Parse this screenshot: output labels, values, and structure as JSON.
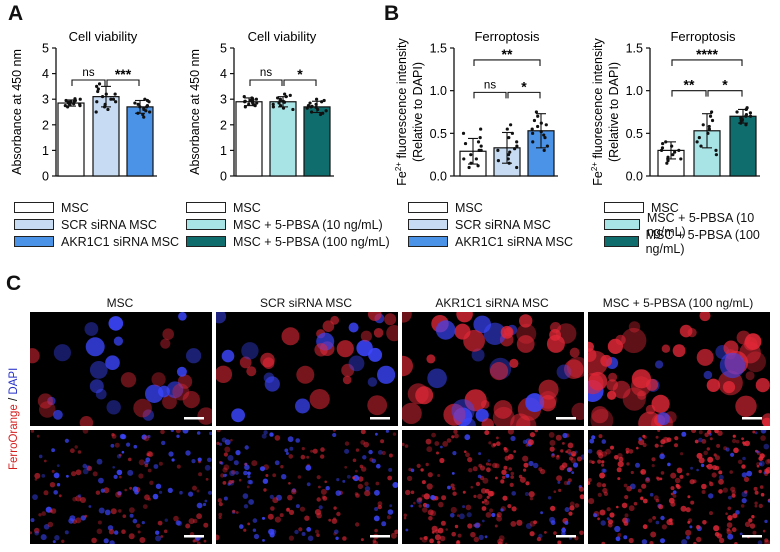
{
  "panels": {
    "A": "A",
    "B": "B",
    "C": "C"
  },
  "colors": {
    "msc": "#ffffff",
    "scr": "#c7dbf2",
    "akr": "#4a93e6",
    "pbsa10": "#a8e3e6",
    "pbsa100": "#106d6e",
    "scale_bar": "#ffffff"
  },
  "chart_data": [
    {
      "id": "A1",
      "type": "bar",
      "title": "Cell viability",
      "ylabel": "Absorbance at 450 nm",
      "ylim": [
        0,
        5
      ],
      "yticks": [
        0,
        1,
        2,
        3,
        4,
        5
      ],
      "categories": [
        "MSC",
        "SCR siRNA MSC",
        "AKR1C1 siRNA MSC"
      ],
      "values": [
        2.85,
        3.1,
        2.7
      ],
      "errors": [
        0.12,
        0.4,
        0.25
      ],
      "colors": [
        "#ffffff",
        "#c7dbf2",
        "#4a93e6"
      ],
      "points": [
        [
          2.7,
          2.75,
          2.8,
          2.85,
          2.9,
          2.95,
          3.0,
          2.8,
          2.85,
          2.9,
          2.75,
          2.95,
          2.88,
          2.82,
          3.02
        ],
        [
          2.5,
          2.7,
          2.8,
          2.9,
          3.0,
          3.1,
          3.2,
          3.3,
          3.5,
          3.6,
          3.0,
          2.9,
          3.4,
          3.2,
          2.6
        ],
        [
          2.3,
          2.4,
          2.5,
          2.6,
          2.7,
          2.8,
          2.9,
          3.0,
          2.65,
          2.75,
          2.55,
          2.85,
          2.95,
          2.45,
          2.7
        ]
      ],
      "significance": [
        {
          "from": 0,
          "to": 1,
          "label": "ns",
          "y": 3.75
        },
        {
          "from": 1,
          "to": 2,
          "label": "***",
          "y": 3.75
        }
      ],
      "legend": [
        "MSC",
        "SCR siRNA MSC",
        "AKR1C1 siRNA MSC"
      ]
    },
    {
      "id": "A2",
      "type": "bar",
      "title": "Cell viability",
      "ylabel": "Absorbance at 450 nm",
      "ylim": [
        0,
        5
      ],
      "yticks": [
        0,
        1,
        2,
        3,
        4,
        5
      ],
      "categories": [
        "MSC",
        "MSC + 5-PBSA (10 ng/mL)",
        "MSC + 5-PBSA (100 ng/mL)"
      ],
      "values": [
        2.9,
        2.9,
        2.7
      ],
      "errors": [
        0.15,
        0.2,
        0.22
      ],
      "colors": [
        "#ffffff",
        "#a8e3e6",
        "#106d6e"
      ],
      "points": [
        [
          2.7,
          2.75,
          2.8,
          2.85,
          2.9,
          2.95,
          3.0,
          3.05,
          2.82,
          2.88,
          2.92,
          3.1,
          2.78,
          2.98,
          2.86
        ],
        [
          2.6,
          2.7,
          2.8,
          2.9,
          3.0,
          3.1,
          3.15,
          2.85,
          2.95,
          2.75,
          3.05,
          2.65,
          2.92,
          2.88,
          3.2
        ],
        [
          2.4,
          2.5,
          2.6,
          2.7,
          2.8,
          2.9,
          2.95,
          2.55,
          2.65,
          2.75,
          2.85,
          2.45,
          2.72,
          2.68,
          3.0
        ]
      ],
      "significance": [
        {
          "from": 0,
          "to": 1,
          "label": "ns",
          "y": 3.75
        },
        {
          "from": 1,
          "to": 2,
          "label": "*",
          "y": 3.75
        }
      ],
      "legend": [
        "MSC",
        "MSC + 5-PBSA (10 ng/mL)",
        "MSC + 5-PBSA (100 ng/mL)"
      ]
    },
    {
      "id": "B1",
      "type": "bar",
      "title": "Ferroptosis",
      "ylabel_sup": "2+",
      "ylabel_a": "Fe",
      "ylabel_b": " fluorescence intensity",
      "ylabel2": "(Relative to DAPI)",
      "ylim": [
        0,
        1.5
      ],
      "yticks": [
        0,
        0.5,
        1.0,
        1.5
      ],
      "ytick_labels": [
        "0.0",
        "0.5",
        "1.0",
        "1.5"
      ],
      "categories": [
        "MSC",
        "SCR siRNA MSC",
        "AKR1C1 siRNA MSC"
      ],
      "values": [
        0.29,
        0.33,
        0.53
      ],
      "errors": [
        0.15,
        0.18,
        0.2
      ],
      "colors": [
        "#ffffff",
        "#c7dbf2",
        "#4a93e6"
      ],
      "points": [
        [
          0.1,
          0.15,
          0.2,
          0.25,
          0.3,
          0.35,
          0.4,
          0.45,
          0.5,
          0.55,
          0.2,
          0.3,
          0.38,
          0.12
        ],
        [
          0.1,
          0.15,
          0.2,
          0.3,
          0.35,
          0.4,
          0.5,
          0.55,
          0.6,
          0.25,
          0.45,
          0.18,
          0.32,
          0.28
        ],
        [
          0.3,
          0.35,
          0.4,
          0.45,
          0.5,
          0.55,
          0.6,
          0.65,
          0.7,
          0.75,
          0.52,
          0.58,
          0.48,
          0.62
        ]
      ],
      "significance": [
        {
          "from": 0,
          "to": 1,
          "label": "ns",
          "y": 0.98
        },
        {
          "from": 1,
          "to": 2,
          "label": "*",
          "y": 0.98
        },
        {
          "from": 0,
          "to": 2,
          "label": "**",
          "y": 1.36
        }
      ],
      "legend": [
        "MSC",
        "SCR siRNA MSC",
        "AKR1C1 siRNA MSC"
      ]
    },
    {
      "id": "B2",
      "type": "bar",
      "title": "Ferroptosis",
      "ylabel_sup": "2+",
      "ylabel_a": "Fe",
      "ylabel_b": " fluorescence intensity",
      "ylabel2": "(Relative to DAPI)",
      "ylim": [
        0,
        1.5
      ],
      "yticks": [
        0,
        0.5,
        1.0,
        1.5
      ],
      "ytick_labels": [
        "0.0",
        "0.5",
        "1.0",
        "1.5"
      ],
      "categories": [
        "MSC",
        "MSC + 5-PBSA (10 ng/mL)",
        "MSC + 5-PBSA (100 ng/mL)"
      ],
      "values": [
        0.3,
        0.53,
        0.7
      ],
      "errors": [
        0.1,
        0.2,
        0.08
      ],
      "colors": [
        "#ffffff",
        "#a8e3e6",
        "#106d6e"
      ],
      "points": [
        [
          0.15,
          0.2,
          0.25,
          0.3,
          0.35,
          0.4,
          0.28,
          0.33,
          0.22,
          0.38,
          0.3,
          0.18
        ],
        [
          0.25,
          0.35,
          0.45,
          0.5,
          0.55,
          0.6,
          0.7,
          0.75,
          0.4,
          0.65,
          0.3,
          0.58
        ],
        [
          0.6,
          0.65,
          0.7,
          0.75,
          0.8,
          0.68,
          0.72,
          0.62,
          0.78,
          0.66,
          0.74,
          0.7
        ]
      ],
      "significance": [
        {
          "from": 0,
          "to": 1,
          "label": "**",
          "y": 1.0
        },
        {
          "from": 1,
          "to": 2,
          "label": "*",
          "y": 1.0
        },
        {
          "from": 0,
          "to": 2,
          "label": "****",
          "y": 1.36
        }
      ],
      "legend": [
        "MSC",
        "MSC + 5-PBSA (10 ng/mL)",
        "MSC + 5-PBSA (100 ng/mL)"
      ]
    }
  ],
  "microscopy": {
    "column_labels": [
      "MSC",
      "SCR siRNA MSC",
      "AKR1C1 siRNA MSC",
      "MSC + 5-PBSA (100 ng/mL)"
    ],
    "side_label_red": "FerroOrange",
    "side_label_sep": " / ",
    "side_label_blue": "DAPI",
    "red_intensity": [
      0.15,
      0.3,
      0.75,
      0.95
    ],
    "blue_intensity": [
      0.9,
      0.7,
      0.4,
      0.3
    ]
  }
}
